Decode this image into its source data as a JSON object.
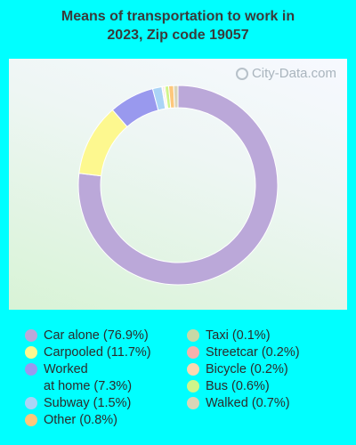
{
  "title_lines": [
    "Means of transportation to work in",
    "2023, Zip code 19057"
  ],
  "watermark": "City-Data.com",
  "chart_data": {
    "type": "pie",
    "title": "Means of transportation to work in 2023, Zip code 19057",
    "donut": true,
    "slices": [
      {
        "name": "Car alone",
        "value": 76.9,
        "color": "#bba8d9"
      },
      {
        "name": "Carpooled",
        "value": 11.7,
        "color": "#fdf88f"
      },
      {
        "name": "Worked at home",
        "value": 7.3,
        "color": "#9999ee"
      },
      {
        "name": "Subway",
        "value": 1.5,
        "color": "#aad4f6"
      },
      {
        "name": "Taxi",
        "value": 0.1,
        "color": "#c7d9a6"
      },
      {
        "name": "Streetcar",
        "value": 0.2,
        "color": "#f4b1ac"
      },
      {
        "name": "Bicycle",
        "value": 0.2,
        "color": "#fcd8b0"
      },
      {
        "name": "Bus",
        "value": 0.6,
        "color": "#cff58a"
      },
      {
        "name": "Other",
        "value": 0.8,
        "color": "#fdc77b"
      },
      {
        "name": "Walked",
        "value": 0.7,
        "color": "#dad5b7"
      }
    ],
    "slice_order_clockwise_from_top": [
      "Car alone",
      "Carpooled",
      "Worked at home",
      "Subway",
      "Taxi",
      "Streetcar",
      "Bicycle",
      "Bus",
      "Other",
      "Walked"
    ]
  },
  "legend": {
    "left": [
      {
        "label_lines": [
          "Car alone (76.9%)"
        ],
        "color": "#bba8d9"
      },
      {
        "label_lines": [
          "Carpooled (11.7%)"
        ],
        "color": "#fdf88f"
      },
      {
        "label_lines": [
          "Worked",
          "at home (7.3%)"
        ],
        "color": "#9999ee"
      },
      {
        "label_lines": [
          "Subway (1.5%)"
        ],
        "color": "#aad4f6"
      },
      {
        "label_lines": [
          "Other (0.8%)"
        ],
        "color": "#fdc77b"
      }
    ],
    "right": [
      {
        "label_lines": [
          "Taxi (0.1%)"
        ],
        "color": "#c7d9a6"
      },
      {
        "label_lines": [
          "Streetcar (0.2%)"
        ],
        "color": "#f4b1ac"
      },
      {
        "label_lines": [
          "Bicycle (0.2%)"
        ],
        "color": "#fcd8b0"
      },
      {
        "label_lines": [
          "Bus (0.6%)"
        ],
        "color": "#cff58a"
      },
      {
        "label_lines": [
          "Walked (0.7%)"
        ],
        "color": "#dad5b7"
      }
    ]
  }
}
